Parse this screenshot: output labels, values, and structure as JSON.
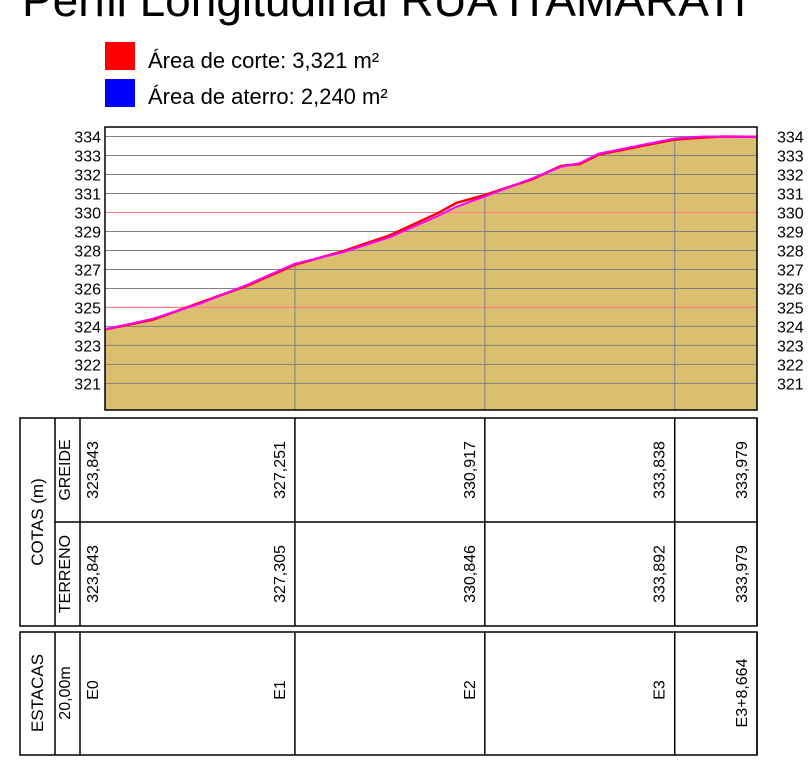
{
  "title": "Perfil Longitudinal RUA ITAMARATI",
  "legend": [
    {
      "label": "Área de corte: 3,321 m²",
      "color": "#ff0000"
    },
    {
      "label": "Área de aterro: 2,240 m²",
      "color": "#0000ff"
    }
  ],
  "chart_data": {
    "type": "profile",
    "ylim": [
      319.6,
      334.5
    ],
    "xlim": [
      0,
      68.664
    ],
    "yticks": [
      321,
      322,
      323,
      324,
      325,
      326,
      327,
      328,
      329,
      330,
      331,
      332,
      333,
      334
    ],
    "reference_lines": [
      325,
      330
    ],
    "stations_x": [
      0,
      20,
      40,
      60,
      68.664
    ],
    "series": [
      {
        "name": "TERRENO",
        "color": "#ff00ff",
        "x": [
          0,
          5,
          10,
          15,
          20,
          25,
          30,
          35,
          37,
          40,
          45,
          48,
          50,
          52,
          56,
          60,
          63,
          65,
          68.664
        ],
        "values": [
          323.843,
          324.4,
          325.2,
          326.2,
          327.305,
          327.9,
          328.7,
          329.8,
          330.3,
          330.846,
          331.8,
          332.4,
          332.6,
          333.1,
          333.5,
          333.892,
          334.0,
          334.0,
          333.979
        ]
      },
      {
        "name": "GREIDE",
        "color": "#ff0000",
        "x": [
          0,
          5,
          10,
          15,
          20,
          25,
          30,
          35,
          37,
          40,
          45,
          48,
          50,
          52,
          56,
          60,
          63,
          65,
          68.664
        ],
        "values": [
          323.843,
          324.35,
          325.25,
          326.15,
          327.251,
          327.95,
          328.8,
          329.95,
          330.5,
          330.917,
          331.75,
          332.45,
          332.55,
          333.05,
          333.45,
          333.838,
          333.95,
          334.0,
          333.979
        ]
      }
    ]
  },
  "table": {
    "group": "COTAS (m)",
    "row_greide": "GREIDE",
    "row_terreno": "TERRENO",
    "greide": [
      "323,843",
      "327,251",
      "330,917",
      "333,838",
      "333,979"
    ],
    "terreno": [
      "323,843",
      "327,305",
      "330,846",
      "333,892",
      "333,979"
    ],
    "estacas_title": "ESTACAS",
    "estacas_step": "20,00m",
    "estacas": [
      "E0",
      "E1",
      "E2",
      "E3",
      "E3+8,664"
    ]
  }
}
